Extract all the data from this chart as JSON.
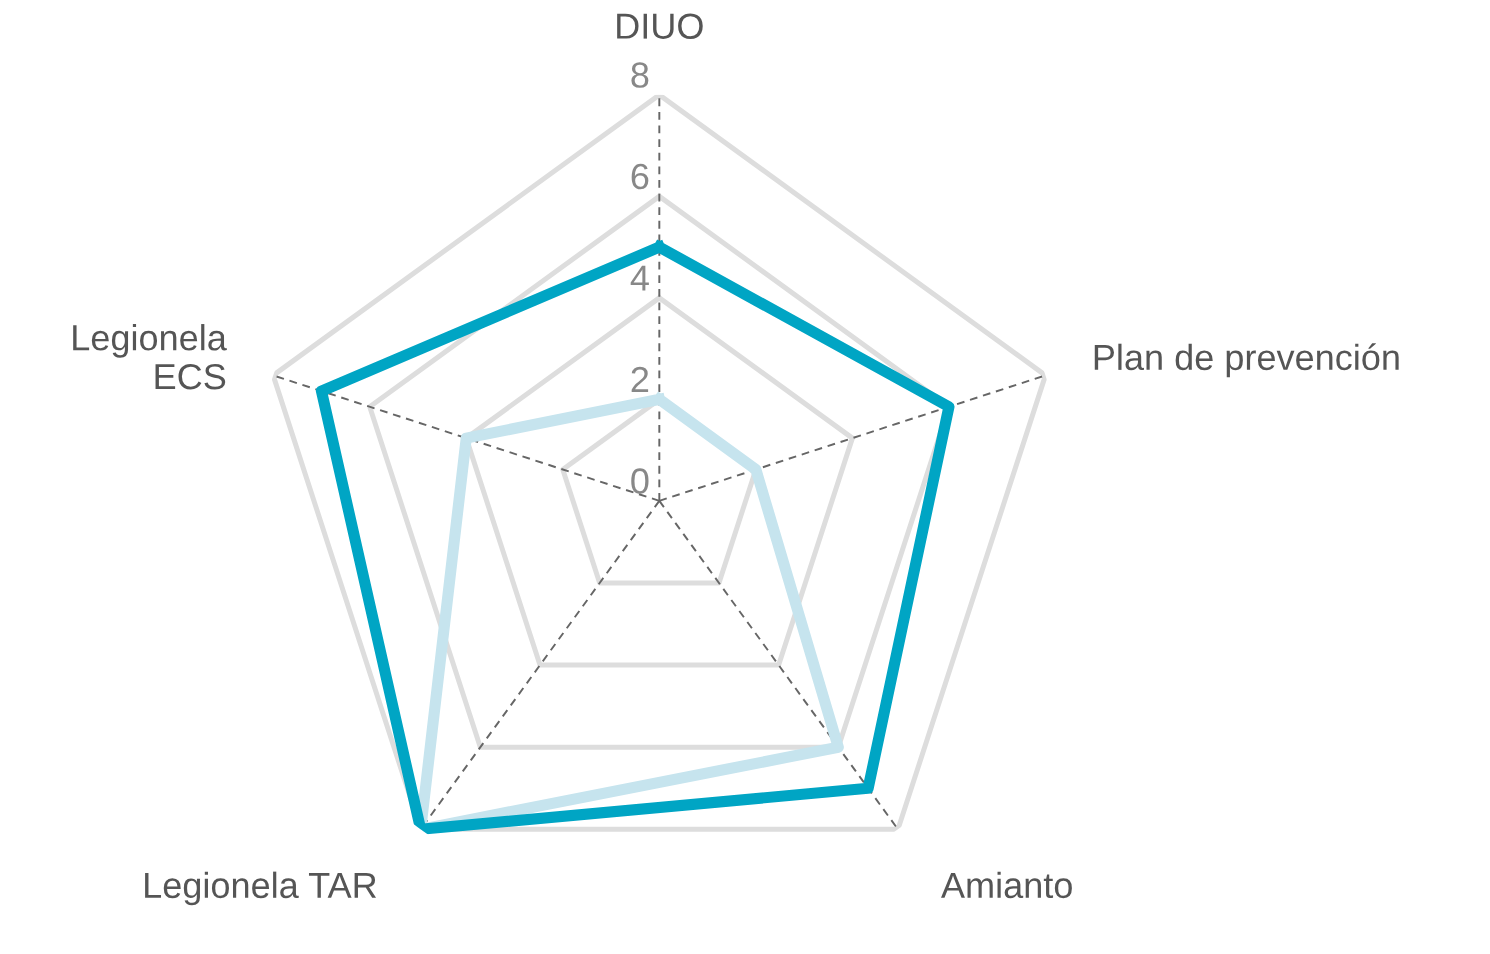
{
  "chart_data": {
    "type": "radar",
    "categories": [
      "DIUO",
      "Plan de prevención",
      "Amianto",
      "Legionela TAR",
      "Legionela\nECS"
    ],
    "series": [
      {
        "color": "#c6e4ee",
        "values": [
          2,
          2,
          6,
          8,
          4
        ]
      },
      {
        "color": "#00a5c4",
        "values": [
          5,
          6,
          7,
          8,
          7
        ]
      }
    ],
    "ylim": [
      0,
      8
    ],
    "yticks": [
      0,
      2,
      4,
      6,
      8
    ],
    "grid": true,
    "legend": false
  }
}
